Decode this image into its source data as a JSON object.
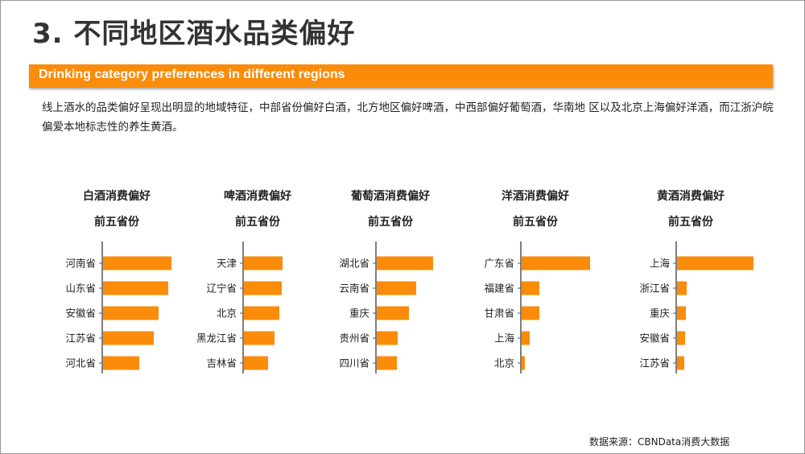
{
  "page": {
    "title": "3. 不同地区酒水品类偏好",
    "banner": "Drinking category preferences in different regions",
    "description": "线上酒水的品类偏好呈现出明显的地域特征，中部省份偏好白酒，北方地区偏好啤酒，中西部偏好葡萄酒，华南地 区以及北京上海偏好洋酒，而江浙沪皖偏爱本地标志性的养生黄酒。",
    "source": "数据来源：CBNData消费大数据"
  },
  "colors": {
    "accent": "#fa8c0a",
    "bar": "#fa8c0a",
    "axis": "#555555"
  },
  "chart_data": [
    {
      "type": "bar",
      "orientation": "horizontal",
      "title": [
        "白酒消费偏好",
        "前五省份"
      ],
      "categories": [
        "河南省",
        "山东省",
        "安徽省",
        "江苏省",
        "河北省"
      ],
      "values": [
        85,
        81,
        69,
        63,
        45
      ]
    },
    {
      "type": "bar",
      "orientation": "horizontal",
      "title": [
        "啤酒消费偏好",
        "前五省份"
      ],
      "categories": [
        "天津",
        "辽宁省",
        "北京",
        "黑龙江省",
        "吉林省"
      ],
      "values": [
        48,
        47,
        44,
        38,
        30
      ]
    },
    {
      "type": "bar",
      "orientation": "horizontal",
      "title": [
        "葡萄酒消费偏好",
        "前五省份"
      ],
      "categories": [
        "湖北省",
        "云南省",
        "重庆",
        "贵州省",
        "四川省"
      ],
      "values": [
        70,
        49,
        40,
        26,
        25
      ]
    },
    {
      "type": "bar",
      "orientation": "horizontal",
      "title": [
        "洋酒消费偏好",
        "前五省份"
      ],
      "categories": [
        "广东省",
        "福建省",
        "甘肃省",
        "上海",
        "北京"
      ],
      "values": [
        85,
        22,
        22,
        10,
        4
      ]
    },
    {
      "type": "bar",
      "orientation": "horizontal",
      "title": [
        "黄酒消费偏好",
        "前五省份"
      ],
      "categories": [
        "上海",
        "浙江省",
        "重庆",
        "安徽省",
        "江苏省"
      ],
      "values": [
        95,
        12,
        11,
        10,
        9
      ]
    }
  ]
}
